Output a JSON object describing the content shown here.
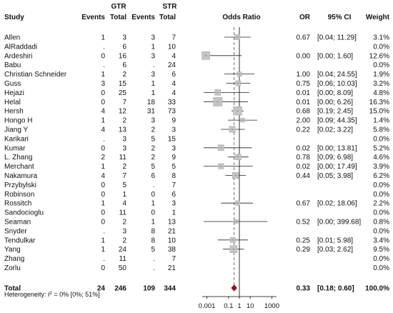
{
  "chart_data": {
    "type": "forest",
    "columns": {
      "study": "Study",
      "events_gtr": "Events",
      "total_gtr": "Total",
      "events_str": "Events",
      "total_str": "Total",
      "group_gtr": "GTR",
      "group_str": "STR",
      "plot": "Odds Ratio",
      "or": "OR",
      "ci": "95% CI",
      "weight": "Weight"
    },
    "studies": [
      {
        "name": "Allen",
        "e1": "1",
        "n1": "3",
        "e2": "3",
        "n2": "7",
        "or": 0.67,
        "lo": 0.04,
        "hi": 11.29,
        "or_text": "0.67",
        "ci_text": "[0.04; 11.29]",
        "weight": "3.1%",
        "w": 3.1
      },
      {
        "name": "AlRaddadi",
        "e1": ".",
        "n1": "6",
        "e2": "1",
        "n2": "10",
        "or": null,
        "lo": null,
        "hi": null,
        "or_text": "",
        "ci_text": "",
        "weight": "0.0%",
        "w": 0
      },
      {
        "name": "Ardeshiri",
        "e1": "0",
        "n1": "16",
        "e2": "3",
        "n2": "4",
        "or": 0.0,
        "lo": 0.0,
        "hi": 1.6,
        "or_text": "0.00",
        "ci_text": "[0.00; 1.60]",
        "weight": "12.6%",
        "w": 12.6
      },
      {
        "name": "Babu",
        "e1": ".",
        "n1": "6",
        "e2": ".",
        "n2": "24",
        "or": null,
        "lo": null,
        "hi": null,
        "or_text": "",
        "ci_text": "",
        "weight": "0.0%",
        "w": 0
      },
      {
        "name": "Christian Schneider",
        "e1": "1",
        "n1": "2",
        "e2": "3",
        "n2": "6",
        "or": 1.0,
        "lo": 0.04,
        "hi": 24.55,
        "or_text": "1.00",
        "ci_text": "[0.04; 24.55]",
        "weight": "1.9%",
        "w": 1.9
      },
      {
        "name": "Guss",
        "e1": "3",
        "n1": "15",
        "e2": "1",
        "n2": "4",
        "or": 0.75,
        "lo": 0.06,
        "hi": 10.03,
        "or_text": "0.75",
        "ci_text": "[0.06; 10.03]",
        "weight": "3.2%",
        "w": 3.2
      },
      {
        "name": "Hejazi",
        "e1": "0",
        "n1": "25",
        "e2": "1",
        "n2": "4",
        "or": 0.01,
        "lo": 0.0,
        "hi": 8.09,
        "or_text": "0.01",
        "ci_text": "[0.00; 8.09]",
        "weight": "4.8%",
        "w": 4.8
      },
      {
        "name": "Helal",
        "e1": "0",
        "n1": "7",
        "e2": "18",
        "n2": "33",
        "or": 0.01,
        "lo": 0.0,
        "hi": 6.26,
        "or_text": "0.01",
        "ci_text": "[0.00; 6.26]",
        "weight": "16.3%",
        "w": 16.3
      },
      {
        "name": "Hersh",
        "e1": "4",
        "n1": "12",
        "e2": "31",
        "n2": "73",
        "or": 0.68,
        "lo": 0.19,
        "hi": 2.45,
        "or_text": "0.68",
        "ci_text": "[0.19; 2.45]",
        "weight": "15.0%",
        "w": 15.0
      },
      {
        "name": "Hongo H",
        "e1": "1",
        "n1": "2",
        "e2": "3",
        "n2": "9",
        "or": 2.0,
        "lo": 0.09,
        "hi": 44.35,
        "or_text": "2.00",
        "ci_text": "[0.09; 44.35]",
        "weight": "1.4%",
        "w": 1.4
      },
      {
        "name": "Jiang Y",
        "e1": "4",
        "n1": "13",
        "e2": "2",
        "n2": "3",
        "or": 0.22,
        "lo": 0.02,
        "hi": 3.22,
        "or_text": "0.22",
        "ci_text": "[0.02; 3.22]",
        "weight": "5.8%",
        "w": 5.8
      },
      {
        "name": "Karikari",
        "e1": ".",
        "n1": "3",
        "e2": "5",
        "n2": "15",
        "or": null,
        "lo": null,
        "hi": null,
        "or_text": "",
        "ci_text": "",
        "weight": "0.0%",
        "w": 0
      },
      {
        "name": "Kumar",
        "e1": "0",
        "n1": "3",
        "e2": "2",
        "n2": "3",
        "or": 0.02,
        "lo": 0.0,
        "hi": 13.81,
        "or_text": "0.02",
        "ci_text": "[0.00; 13.81]",
        "weight": "5.2%",
        "w": 5.2
      },
      {
        "name": "L. Zhang",
        "e1": "2",
        "n1": "11",
        "e2": "2",
        "n2": "9",
        "or": 0.78,
        "lo": 0.09,
        "hi": 6.98,
        "or_text": "0.78",
        "ci_text": "[0.09; 6.98]",
        "weight": "4.6%",
        "w": 4.6
      },
      {
        "name": "Merchant",
        "e1": "1",
        "n1": "2",
        "e2": "5",
        "n2": "5",
        "or": 0.02,
        "lo": 0.0,
        "hi": 17.49,
        "or_text": "0.02",
        "ci_text": "[0.00; 17.49]",
        "weight": "3.9%",
        "w": 3.9
      },
      {
        "name": "Nakamura",
        "e1": "4",
        "n1": "7",
        "e2": "6",
        "n2": "8",
        "or": 0.44,
        "lo": 0.05,
        "hi": 3.98,
        "or_text": "0.44",
        "ci_text": "[0.05; 3.98]",
        "weight": "6.2%",
        "w": 6.2
      },
      {
        "name": "Przybylski",
        "e1": "0",
        "n1": "5",
        "e2": ".",
        "n2": "7",
        "or": null,
        "lo": null,
        "hi": null,
        "or_text": "",
        "ci_text": "",
        "weight": "0.0%",
        "w": 0
      },
      {
        "name": "Robinson",
        "e1": "0",
        "n1": "1",
        "e2": "0",
        "n2": "6",
        "or": null,
        "lo": null,
        "hi": null,
        "or_text": "",
        "ci_text": "",
        "weight": "0.0%",
        "w": 0
      },
      {
        "name": "Rossitch",
        "e1": "1",
        "n1": "4",
        "e2": "1",
        "n2": "3",
        "or": 0.67,
        "lo": 0.02,
        "hi": 18.06,
        "or_text": "0.67",
        "ci_text": "[0.02; 18.06]",
        "weight": "2.2%",
        "w": 2.2
      },
      {
        "name": "Sandocioglu",
        "e1": "0",
        "n1": "11",
        "e2": "0",
        "n2": "1",
        "or": null,
        "lo": null,
        "hi": null,
        "or_text": "",
        "ci_text": "",
        "weight": "0.0%",
        "w": 0
      },
      {
        "name": "Seaman",
        "e1": "0",
        "n1": "2",
        "e2": "1",
        "n2": "13",
        "or": 0.52,
        "lo": 0.0,
        "hi": 399.68,
        "or_text": "0.52",
        "ci_text": "[0.00; 399.68]",
        "weight": "0.8%",
        "w": 0.8
      },
      {
        "name": "Snyder",
        "e1": ".",
        "n1": "3",
        "e2": "8",
        "n2": "21",
        "or": null,
        "lo": null,
        "hi": null,
        "or_text": "",
        "ci_text": "",
        "weight": "0.0%",
        "w": 0
      },
      {
        "name": "Tendulkar",
        "e1": "1",
        "n1": "2",
        "e2": "8",
        "n2": "10",
        "or": 0.25,
        "lo": 0.01,
        "hi": 5.98,
        "or_text": "0.25",
        "ci_text": "[0.01; 5.98]",
        "weight": "3.4%",
        "w": 3.4
      },
      {
        "name": "Yang",
        "e1": "1",
        "n1": "24",
        "e2": "5",
        "n2": "38",
        "or": 0.29,
        "lo": 0.03,
        "hi": 2.62,
        "or_text": "0.29",
        "ci_text": "[0.03; 2.62]",
        "weight": "9.5%",
        "w": 9.5
      },
      {
        "name": "Zhang",
        "e1": ".",
        "n1": "11",
        "e2": ".",
        "n2": "7",
        "or": null,
        "lo": null,
        "hi": null,
        "or_text": "",
        "ci_text": "",
        "weight": "0.0%",
        "w": 0
      },
      {
        "name": "Zorlu",
        "e1": "0",
        "n1": "50",
        "e2": ".",
        "n2": "21",
        "or": null,
        "lo": null,
        "hi": null,
        "or_text": "",
        "ci_text": "",
        "weight": "0.0%",
        "w": 0
      }
    ],
    "total": {
      "name": "Total",
      "e1": "24",
      "n1": "246",
      "e2": "109",
      "n2": "344",
      "or": 0.33,
      "lo": 0.18,
      "hi": 0.6,
      "or_text": "0.33",
      "ci_text": "[0.18; 0.60]",
      "weight": "100.0%"
    },
    "heterogeneity": {
      "prefix": "Heterogeneity: ",
      "symbol": "I",
      "exponent": "2",
      "text": " = 0% [0%; 51%]"
    },
    "x_axis": {
      "scale": "log",
      "xlim": [
        0.0005,
        2000
      ],
      "ticks": [
        0.001,
        0.1,
        1,
        10,
        1000
      ],
      "tick_labels": [
        "0.001",
        "0.1",
        "1",
        "10",
        "1000"
      ],
      "reference_line": 1
    },
    "colors": {
      "square": "#c4c4c4",
      "square_stroke": "#a8a8a8",
      "ci_line": "#222222",
      "diamond": "#8b1a1a",
      "reference": "#000000",
      "pooled_line": "#444444"
    }
  }
}
